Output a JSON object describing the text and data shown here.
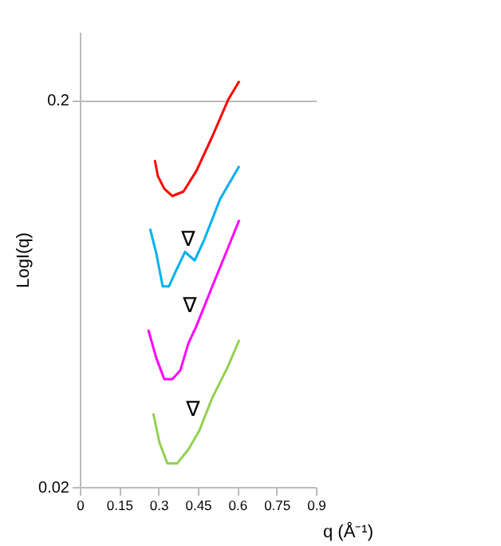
{
  "chart_data": {
    "type": "line",
    "xlabel": "q (Å⁻¹)",
    "ylabel": "LogI(q)",
    "xlim": [
      0,
      0.9
    ],
    "xticks": [
      0,
      0.15,
      0.3,
      0.45,
      0.6,
      0.75,
      0.9
    ],
    "ylim": [
      0.02,
      0.3
    ],
    "yticks": [
      0.02,
      0.2
    ],
    "log": "y",
    "grid": "y",
    "legend": false,
    "marker": "none",
    "line_style": "solid",
    "series": [
      {
        "color": "#ff0000",
        "x": [
          0.286,
          0.298,
          0.322,
          0.353,
          0.395,
          0.444,
          0.505,
          0.565,
          0.608
        ],
        "values": [
          0.14,
          0.127,
          0.118,
          0.113,
          0.116,
          0.131,
          0.161,
          0.2,
          0.224
        ]
      },
      {
        "color": "#00b0f0",
        "x": [
          0.268,
          0.292,
          0.316,
          0.34,
          0.365,
          0.401,
          0.438,
          0.474,
          0.535,
          0.608
        ],
        "values": [
          0.093,
          0.08,
          0.066,
          0.066,
          0.072,
          0.081,
          0.077,
          0.087,
          0.111,
          0.135
        ]
      },
      {
        "color": "#ff00ff",
        "x": [
          0.261,
          0.292,
          0.322,
          0.353,
          0.383,
          0.414,
          0.444,
          0.505,
          0.565,
          0.608
        ],
        "values": [
          0.051,
          0.043,
          0.038,
          0.038,
          0.04,
          0.047,
          0.052,
          0.066,
          0.083,
          0.098
        ]
      },
      {
        "color": "#92d050",
        "x": [
          0.28,
          0.304,
          0.334,
          0.371,
          0.414,
          0.456,
          0.505,
          0.565,
          0.608
        ],
        "values": [
          0.031,
          0.026,
          0.023,
          0.023,
          0.025,
          0.028,
          0.034,
          0.041,
          0.048
        ]
      }
    ],
    "annotations": [
      {
        "text": "∇",
        "x": 0.438,
        "y": 0.077
      },
      {
        "text": "∇",
        "x": 0.444,
        "y": 0.052
      },
      {
        "text": "∇",
        "x": 0.456,
        "y": 0.028
      }
    ]
  }
}
